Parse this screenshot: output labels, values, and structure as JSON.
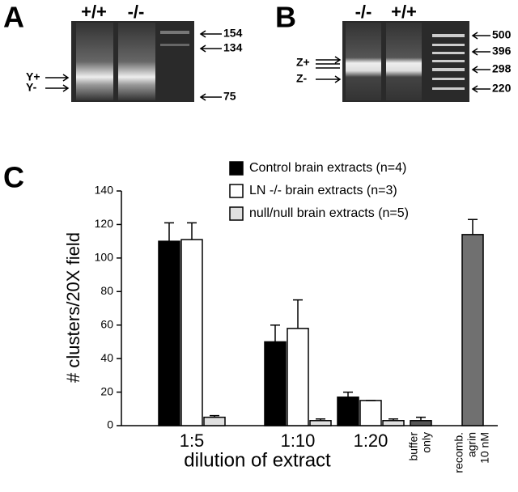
{
  "gel_a": {
    "panel": "A",
    "lanes": [
      "+/+",
      "-/-"
    ],
    "markers": [
      "154",
      "134",
      "75"
    ],
    "bands": [
      "Y+",
      "Y-"
    ]
  },
  "gel_b": {
    "panel": "B",
    "lanes": [
      "-/-",
      "+/+"
    ],
    "markers": [
      "500",
      "396",
      "298",
      "220"
    ],
    "bands": [
      "Z+",
      "Z-"
    ]
  },
  "chart_data": {
    "type": "bar",
    "panel": "C",
    "x_label": "dilution of extract",
    "y_label": "# clusters/20X field",
    "categories": [
      "1:5",
      "1:10",
      "1:20",
      [
        "buffer",
        "only"
      ],
      [
        "recomb.",
        "agrin",
        "10 nM"
      ]
    ],
    "series": [
      {
        "name": "Control brain extracts (n=4)",
        "color": "#000000",
        "values": [
          110,
          50,
          17,
          null,
          null
        ],
        "errors": [
          11,
          10,
          3,
          null,
          null
        ]
      },
      {
        "name": "LN -/- brain extracts (n=3)",
        "color": "#ffffff",
        "values": [
          111,
          58,
          15,
          null,
          null
        ],
        "errors": [
          10,
          17,
          0,
          null,
          null
        ]
      },
      {
        "name": "null/null brain extracts (n=5)",
        "color": "#e0e0e0",
        "values": [
          5,
          3,
          3,
          null,
          null
        ],
        "errors": [
          1,
          1,
          1,
          null,
          null
        ]
      }
    ],
    "controls": {
      "colors": [
        "#555555",
        "#707070"
      ],
      "values": [
        null,
        null,
        null,
        3,
        114
      ],
      "errors": [
        null,
        null,
        null,
        2,
        9
      ]
    },
    "ylim": [
      0,
      140
    ],
    "yticks": [
      0,
      20,
      40,
      60,
      80,
      100,
      120,
      140
    ]
  }
}
